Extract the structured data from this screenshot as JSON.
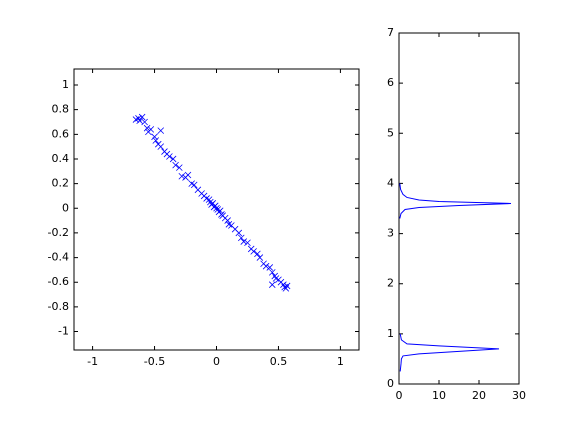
{
  "chart_data": [
    {
      "type": "scatter",
      "marker": "x",
      "color": "#0000ff",
      "xlim": [
        -1.15,
        1.15
      ],
      "ylim": [
        -1.15,
        1.13
      ],
      "xticks": [
        -1,
        -0.5,
        0,
        0.5,
        1
      ],
      "yticks": [
        -1,
        -0.8,
        -0.6,
        -0.4,
        -0.2,
        0,
        0.2,
        0.4,
        0.6,
        0.8,
        1
      ],
      "x": [
        -0.65,
        -0.63,
        -0.62,
        -0.6,
        -0.58,
        -0.56,
        -0.55,
        -0.53,
        -0.5,
        -0.49,
        -0.47,
        -0.45,
        -0.45,
        -0.42,
        -0.4,
        -0.38,
        -0.35,
        -0.33,
        -0.3,
        -0.28,
        -0.25,
        -0.23,
        -0.2,
        -0.18,
        -0.15,
        -0.12,
        -0.1,
        -0.08,
        -0.06,
        -0.05,
        -0.04,
        -0.03,
        -0.02,
        -0.01,
        0,
        0.01,
        0.02,
        0.03,
        0.04,
        0.05,
        0.07,
        0.09,
        0.1,
        0.12,
        0.15,
        0.18,
        0.2,
        0.22,
        0.25,
        0.28,
        0.3,
        0.33,
        0.35,
        0.38,
        0.4,
        0.43,
        0.45,
        0.47,
        0.5,
        0.52,
        0.54,
        0.55,
        0.56,
        0.57,
        0.45,
        0.48
      ],
      "y": [
        0.72,
        0.73,
        0.71,
        0.74,
        0.7,
        0.65,
        0.62,
        0.64,
        0.58,
        0.55,
        0.52,
        0.63,
        0.5,
        0.46,
        0.44,
        0.42,
        0.4,
        0.35,
        0.33,
        0.26,
        0.25,
        0.27,
        0.2,
        0.19,
        0.15,
        0.12,
        0.1,
        0.08,
        0.07,
        0.05,
        0.03,
        0.04,
        0.01,
        0.02,
        0,
        -0.01,
        -0.03,
        -0.02,
        -0.05,
        -0.06,
        -0.08,
        -0.1,
        -0.13,
        -0.14,
        -0.17,
        -0.2,
        -0.24,
        -0.27,
        -0.28,
        -0.33,
        -0.35,
        -0.37,
        -0.4,
        -0.45,
        -0.47,
        -0.48,
        -0.52,
        -0.55,
        -0.58,
        -0.6,
        -0.62,
        -0.64,
        -0.65,
        -0.63,
        -0.62,
        -0.57
      ]
    },
    {
      "type": "line",
      "color": "#0000ff",
      "xlim": [
        0,
        30
      ],
      "ylim": [
        0,
        7
      ],
      "xticks": [
        0,
        10,
        20,
        30
      ],
      "yticks": [
        0,
        1,
        2,
        3,
        4,
        5,
        6,
        7
      ],
      "x": [
        0.3,
        0.5,
        0.6,
        1,
        5,
        15,
        25,
        10,
        2,
        0.6,
        0.3,
        null,
        0.2,
        0.5,
        1.5,
        5,
        15,
        28,
        10,
        5,
        2,
        1,
        0.4,
        0.2
      ],
      "y": [
        0.25,
        0.4,
        0.5,
        0.56,
        0.6,
        0.65,
        0.7,
        0.76,
        0.8,
        0.88,
        1.0,
        null,
        3.3,
        3.4,
        3.48,
        3.52,
        3.56,
        3.6,
        3.64,
        3.67,
        3.72,
        3.78,
        3.88,
        4.0
      ]
    }
  ]
}
